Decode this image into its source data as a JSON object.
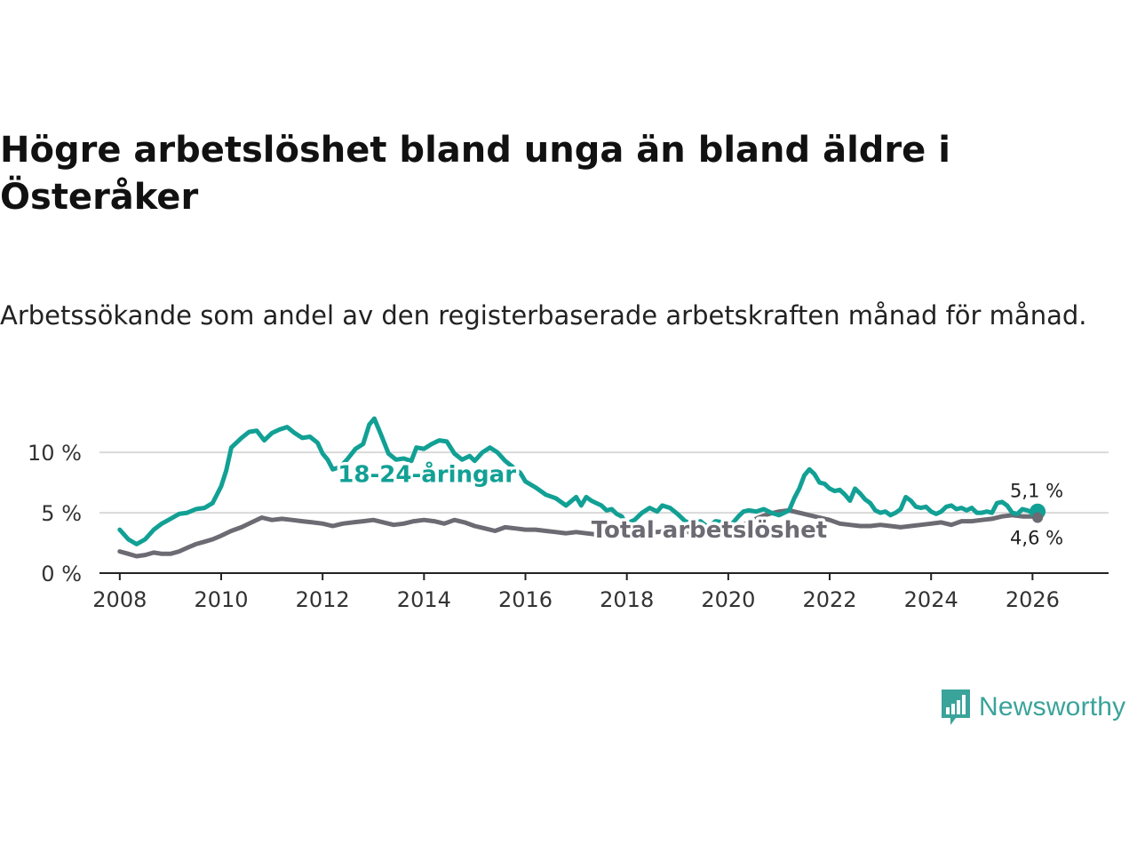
{
  "title": "Högre arbetslöshet bland unga än bland äldre i Österåker",
  "subtitle": "Arbetssökande som andel av den registerbaserade arbetskraften månad för månad.",
  "brand": {
    "name": "Newsworthy",
    "icon": "newsworthy-chart-icon",
    "color": "#3aa39a"
  },
  "chart_data": {
    "type": "line",
    "title": "Högre arbetslöshet bland unga än bland äldre i Österåker",
    "xlabel": "",
    "ylabel": "",
    "xlim": [
      2007.6,
      2027.5
    ],
    "ylim": [
      0,
      12
    ],
    "x_ticks": [
      {
        "value": 2008,
        "label": "2008"
      },
      {
        "value": 2010,
        "label": "2010"
      },
      {
        "value": 2012,
        "label": "2012"
      },
      {
        "value": 2014,
        "label": "2014"
      },
      {
        "value": 2016,
        "label": "2016"
      },
      {
        "value": 2018,
        "label": "2018"
      },
      {
        "value": 2020,
        "label": "2020"
      },
      {
        "value": 2022,
        "label": "2022"
      },
      {
        "value": 2024,
        "label": "2024"
      },
      {
        "value": 2026,
        "label": "2026"
      }
    ],
    "y_ticks": [
      {
        "value": 0,
        "label": "0 %"
      },
      {
        "value": 5,
        "label": "5 %"
      },
      {
        "value": 10,
        "label": "10 %"
      }
    ],
    "grid": true,
    "series": [
      {
        "name": "18-24-åringar",
        "color": "#12a095",
        "label_at": [
          2012.3,
          8.2
        ],
        "end_label": "5,1 %",
        "points": [
          [
            2008.0,
            3.6
          ],
          [
            2008.17,
            2.8
          ],
          [
            2008.33,
            2.4
          ],
          [
            2008.5,
            2.8
          ],
          [
            2008.67,
            3.6
          ],
          [
            2008.83,
            4.1
          ],
          [
            2009.0,
            4.5
          ],
          [
            2009.17,
            4.9
          ],
          [
            2009.33,
            5.0
          ],
          [
            2009.5,
            5.3
          ],
          [
            2009.67,
            5.4
          ],
          [
            2009.83,
            5.8
          ],
          [
            2010.0,
            7.2
          ],
          [
            2010.1,
            8.5
          ],
          [
            2010.2,
            10.4
          ],
          [
            2010.4,
            11.2
          ],
          [
            2010.55,
            11.7
          ],
          [
            2010.7,
            11.8
          ],
          [
            2010.85,
            11.0
          ],
          [
            2011.0,
            11.6
          ],
          [
            2011.15,
            11.9
          ],
          [
            2011.3,
            12.1
          ],
          [
            2011.45,
            11.6
          ],
          [
            2011.6,
            11.2
          ],
          [
            2011.75,
            11.3
          ],
          [
            2011.9,
            10.8
          ],
          [
            2012.0,
            9.9
          ],
          [
            2012.1,
            9.4
          ],
          [
            2012.2,
            8.6
          ],
          [
            2012.35,
            8.8
          ],
          [
            2012.5,
            9.5
          ],
          [
            2012.65,
            10.3
          ],
          [
            2012.8,
            10.7
          ],
          [
            2012.92,
            12.3
          ],
          [
            2013.02,
            12.8
          ],
          [
            2013.15,
            11.5
          ],
          [
            2013.3,
            9.9
          ],
          [
            2013.45,
            9.4
          ],
          [
            2013.6,
            9.5
          ],
          [
            2013.75,
            9.3
          ],
          [
            2013.85,
            10.4
          ],
          [
            2014.0,
            10.3
          ],
          [
            2014.15,
            10.7
          ],
          [
            2014.3,
            11.0
          ],
          [
            2014.45,
            10.9
          ],
          [
            2014.6,
            9.9
          ],
          [
            2014.75,
            9.4
          ],
          [
            2014.9,
            9.7
          ],
          [
            2015.0,
            9.3
          ],
          [
            2015.15,
            10.0
          ],
          [
            2015.3,
            10.4
          ],
          [
            2015.45,
            10.0
          ],
          [
            2015.6,
            9.3
          ],
          [
            2015.75,
            8.8
          ],
          [
            2015.9,
            8.3
          ],
          [
            2016.0,
            7.6
          ],
          [
            2016.2,
            7.1
          ],
          [
            2016.4,
            6.5
          ],
          [
            2016.6,
            6.2
          ],
          [
            2016.8,
            5.6
          ],
          [
            2017.0,
            6.3
          ],
          [
            2017.1,
            5.6
          ],
          [
            2017.2,
            6.3
          ],
          [
            2017.3,
            6.0
          ],
          [
            2017.4,
            5.8
          ],
          [
            2017.5,
            5.6
          ],
          [
            2017.6,
            5.2
          ],
          [
            2017.7,
            5.3
          ],
          [
            2017.8,
            4.9
          ],
          [
            2017.9,
            4.7
          ],
          [
            2017.95,
            4.3
          ],
          [
            2018.05,
            4.2
          ],
          [
            2018.15,
            4.4
          ],
          [
            2018.3,
            5.0
          ],
          [
            2018.45,
            5.4
          ],
          [
            2018.6,
            5.1
          ],
          [
            2018.7,
            5.6
          ],
          [
            2018.85,
            5.4
          ],
          [
            2019.0,
            4.9
          ],
          [
            2019.15,
            4.3
          ],
          [
            2019.3,
            4.1
          ],
          [
            2019.45,
            4.3
          ],
          [
            2019.6,
            3.8
          ],
          [
            2019.75,
            4.3
          ],
          [
            2019.9,
            4.2
          ],
          [
            2020.0,
            3.9
          ],
          [
            2020.1,
            4.2
          ],
          [
            2020.2,
            4.7
          ],
          [
            2020.3,
            5.1
          ],
          [
            2020.4,
            5.2
          ],
          [
            2020.55,
            5.1
          ],
          [
            2020.7,
            5.3
          ],
          [
            2020.85,
            5.0
          ],
          [
            2021.0,
            4.8
          ],
          [
            2021.1,
            5.0
          ],
          [
            2021.2,
            5.2
          ],
          [
            2021.3,
            6.2
          ],
          [
            2021.4,
            7.0
          ],
          [
            2021.5,
            8.1
          ],
          [
            2021.6,
            8.6
          ],
          [
            2021.7,
            8.2
          ],
          [
            2021.8,
            7.5
          ],
          [
            2021.9,
            7.4
          ],
          [
            2022.0,
            7.0
          ],
          [
            2022.1,
            6.8
          ],
          [
            2022.2,
            6.9
          ],
          [
            2022.3,
            6.5
          ],
          [
            2022.4,
            6.0
          ],
          [
            2022.5,
            7.0
          ],
          [
            2022.6,
            6.6
          ],
          [
            2022.7,
            6.1
          ],
          [
            2022.8,
            5.8
          ],
          [
            2022.9,
            5.2
          ],
          [
            2023.0,
            5.0
          ],
          [
            2023.1,
            5.1
          ],
          [
            2023.2,
            4.8
          ],
          [
            2023.3,
            5.0
          ],
          [
            2023.4,
            5.3
          ],
          [
            2023.5,
            6.3
          ],
          [
            2023.6,
            6.0
          ],
          [
            2023.7,
            5.5
          ],
          [
            2023.8,
            5.4
          ],
          [
            2023.9,
            5.5
          ],
          [
            2024.0,
            5.1
          ],
          [
            2024.1,
            4.9
          ],
          [
            2024.2,
            5.1
          ],
          [
            2024.3,
            5.5
          ],
          [
            2024.4,
            5.6
          ],
          [
            2024.5,
            5.3
          ],
          [
            2024.6,
            5.4
          ],
          [
            2024.7,
            5.2
          ],
          [
            2024.8,
            5.4
          ],
          [
            2024.9,
            5.0
          ],
          [
            2025.0,
            5.0
          ],
          [
            2025.1,
            5.1
          ],
          [
            2025.2,
            5.0
          ],
          [
            2025.3,
            5.8
          ],
          [
            2025.4,
            5.9
          ],
          [
            2025.5,
            5.6
          ],
          [
            2025.6,
            5.0
          ],
          [
            2025.7,
            4.9
          ],
          [
            2025.8,
            5.3
          ],
          [
            2025.9,
            5.2
          ],
          [
            2026.0,
            5.0
          ],
          [
            2026.1,
            5.1
          ]
        ]
      },
      {
        "name": "Total arbetslöshet",
        "color": "#6c6a72",
        "label_at": [
          2017.3,
          3.6
        ],
        "end_label": "4,6 %",
        "points": [
          [
            2008.0,
            1.8
          ],
          [
            2008.17,
            1.6
          ],
          [
            2008.33,
            1.4
          ],
          [
            2008.5,
            1.5
          ],
          [
            2008.67,
            1.7
          ],
          [
            2008.83,
            1.6
          ],
          [
            2009.0,
            1.6
          ],
          [
            2009.17,
            1.8
          ],
          [
            2009.33,
            2.1
          ],
          [
            2009.5,
            2.4
          ],
          [
            2009.67,
            2.6
          ],
          [
            2009.83,
            2.8
          ],
          [
            2010.0,
            3.1
          ],
          [
            2010.2,
            3.5
          ],
          [
            2010.4,
            3.8
          ],
          [
            2010.6,
            4.2
          ],
          [
            2010.8,
            4.6
          ],
          [
            2011.0,
            4.4
          ],
          [
            2011.2,
            4.5
          ],
          [
            2011.4,
            4.4
          ],
          [
            2011.6,
            4.3
          ],
          [
            2011.8,
            4.2
          ],
          [
            2012.0,
            4.1
          ],
          [
            2012.2,
            3.9
          ],
          [
            2012.4,
            4.1
          ],
          [
            2012.6,
            4.2
          ],
          [
            2012.8,
            4.3
          ],
          [
            2013.0,
            4.4
          ],
          [
            2013.2,
            4.2
          ],
          [
            2013.4,
            4.0
          ],
          [
            2013.6,
            4.1
          ],
          [
            2013.8,
            4.3
          ],
          [
            2014.0,
            4.4
          ],
          [
            2014.2,
            4.3
          ],
          [
            2014.4,
            4.1
          ],
          [
            2014.6,
            4.4
          ],
          [
            2014.8,
            4.2
          ],
          [
            2015.0,
            3.9
          ],
          [
            2015.2,
            3.7
          ],
          [
            2015.4,
            3.5
          ],
          [
            2015.6,
            3.8
          ],
          [
            2015.8,
            3.7
          ],
          [
            2016.0,
            3.6
          ],
          [
            2016.2,
            3.6
          ],
          [
            2016.4,
            3.5
          ],
          [
            2016.6,
            3.4
          ],
          [
            2016.8,
            3.3
          ],
          [
            2017.0,
            3.4
          ],
          [
            2017.2,
            3.3
          ],
          [
            2017.4,
            3.2
          ],
          [
            2017.6,
            3.2
          ],
          [
            2017.8,
            3.3
          ],
          [
            2018.0,
            3.3
          ],
          [
            2018.2,
            3.4
          ],
          [
            2018.4,
            3.4
          ],
          [
            2018.6,
            3.4
          ],
          [
            2018.8,
            3.5
          ],
          [
            2019.0,
            3.4
          ],
          [
            2019.2,
            3.4
          ],
          [
            2019.4,
            3.5
          ],
          [
            2019.6,
            3.5
          ],
          [
            2019.8,
            3.6
          ],
          [
            2020.0,
            3.7
          ],
          [
            2020.2,
            3.8
          ],
          [
            2020.4,
            4.2
          ],
          [
            2020.6,
            4.6
          ],
          [
            2020.8,
            4.9
          ],
          [
            2021.0,
            5.1
          ],
          [
            2021.2,
            5.2
          ],
          [
            2021.4,
            5.0
          ],
          [
            2021.6,
            4.8
          ],
          [
            2021.8,
            4.6
          ],
          [
            2022.0,
            4.4
          ],
          [
            2022.2,
            4.1
          ],
          [
            2022.4,
            4.0
          ],
          [
            2022.6,
            3.9
          ],
          [
            2022.8,
            3.9
          ],
          [
            2023.0,
            4.0
          ],
          [
            2023.2,
            3.9
          ],
          [
            2023.4,
            3.8
          ],
          [
            2023.6,
            3.9
          ],
          [
            2023.8,
            4.0
          ],
          [
            2024.0,
            4.1
          ],
          [
            2024.2,
            4.2
          ],
          [
            2024.4,
            4.0
          ],
          [
            2024.6,
            4.3
          ],
          [
            2024.8,
            4.3
          ],
          [
            2025.0,
            4.4
          ],
          [
            2025.2,
            4.5
          ],
          [
            2025.4,
            4.7
          ],
          [
            2025.6,
            4.8
          ],
          [
            2025.8,
            4.7
          ],
          [
            2026.0,
            4.7
          ],
          [
            2026.1,
            4.6
          ]
        ]
      }
    ]
  }
}
